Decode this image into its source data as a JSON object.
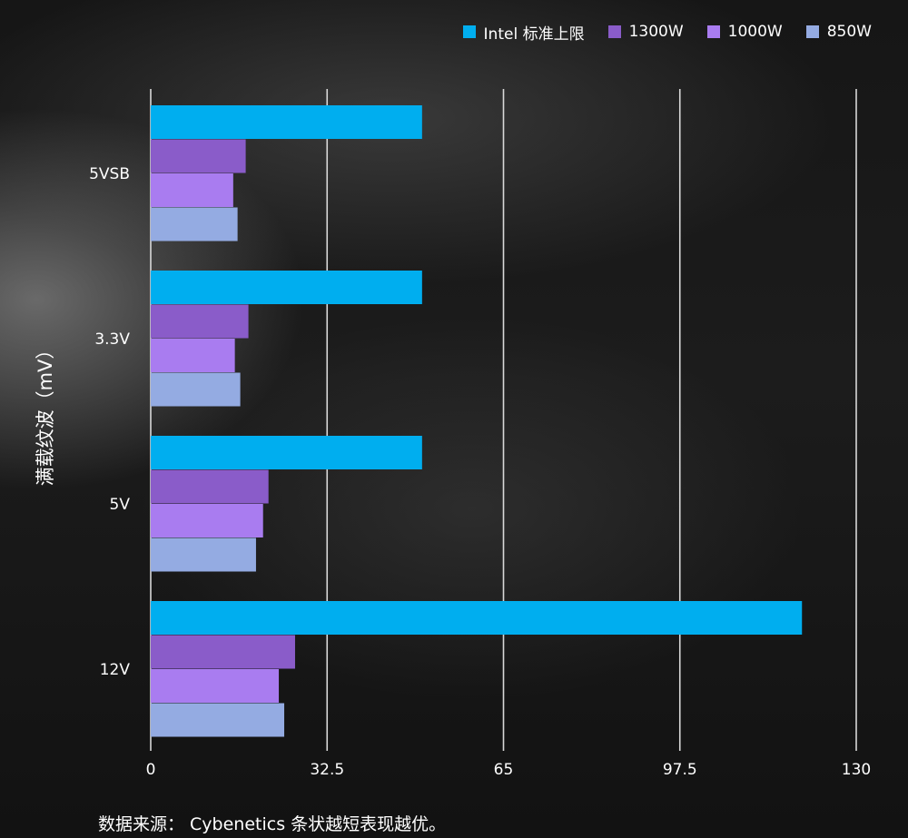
{
  "chart_data": {
    "type": "bar",
    "orientation": "horizontal",
    "ylabel": "满载纹波（mV）",
    "xlabel": "",
    "title": "",
    "categories": [
      "5VSB",
      "3.3V",
      "5V",
      "12V"
    ],
    "xlim": [
      0,
      130
    ],
    "xticks": [
      "0",
      "32.5",
      "65",
      "97.5",
      "130"
    ],
    "grid": "vertical",
    "legend_position": "top-right",
    "series": [
      {
        "name": "Intel 标准上限",
        "color": "#00aeef",
        "values": [
          50,
          50,
          50,
          120
        ]
      },
      {
        "name": "1300W",
        "color": "#8a5cc9",
        "values": [
          17.5,
          18,
          21.7,
          26.6
        ]
      },
      {
        "name": "1000W",
        "color": "#a97cf0",
        "values": [
          15.2,
          15.5,
          20.7,
          23.6
        ]
      },
      {
        "name": "850W",
        "color": "#94abe2",
        "values": [
          16,
          16.5,
          19.4,
          24.6
        ]
      }
    ]
  },
  "footnote": "数据来源： Cybenetics 条状越短表现越优。"
}
